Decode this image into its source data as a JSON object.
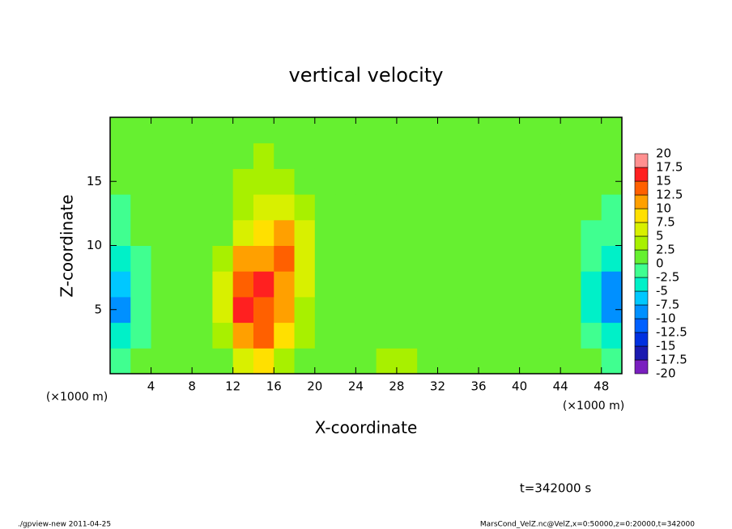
{
  "chart_data": {
    "type": "heatmap",
    "title": "vertical velocity",
    "xlabel": "X-coordinate",
    "ylabel": "Z-coordinate",
    "x_unit_label": "(×1000 m)",
    "time_label": "t=342000 s",
    "footer_left": "./gpview-new  2011-04-25",
    "footer_right": "MarsCond_VelZ.nc@VelZ,x=0:50000,z=0:20000,t=342000",
    "xlim": [
      0,
      50
    ],
    "ylim": [
      0,
      20
    ],
    "xticks": [
      4,
      8,
      12,
      16,
      20,
      24,
      28,
      32,
      36,
      40,
      44,
      48
    ],
    "yticks": [
      5,
      10,
      15
    ],
    "x": [
      1,
      3,
      5,
      7,
      9,
      11,
      13,
      15,
      17,
      19,
      21,
      23,
      25,
      27,
      29,
      31,
      33,
      35,
      37,
      39,
      41,
      43,
      45,
      47,
      49
    ],
    "y": [
      1,
      3,
      5,
      7,
      9,
      11,
      13,
      15,
      17,
      19
    ],
    "z": [
      [
        -2,
        0,
        1,
        1,
        1,
        2,
        6,
        8,
        4,
        1,
        1,
        1,
        1,
        4,
        3,
        1,
        1,
        2,
        1,
        1,
        2,
        1,
        1,
        0,
        -2
      ],
      [
        -5,
        -1,
        1,
        1,
        1,
        4,
        12,
        13,
        9,
        3,
        1,
        1,
        1,
        2,
        1,
        1,
        1,
        1,
        2,
        1,
        1,
        1,
        0,
        -1,
        -4
      ],
      [
        -8,
        -2,
        0,
        1,
        1,
        7,
        15,
        13,
        11,
        4,
        1,
        1,
        1,
        1,
        1,
        1,
        1,
        1,
        2,
        2,
        1,
        1,
        0,
        -3,
        -8
      ],
      [
        -6,
        -2,
        0,
        1,
        1,
        5,
        13,
        15,
        12,
        5,
        1,
        1,
        1,
        1,
        0,
        1,
        1,
        1,
        1,
        1,
        1,
        1,
        0,
        -3,
        -9
      ],
      [
        -4,
        -1,
        0,
        1,
        1,
        3,
        10,
        12,
        14,
        7,
        2,
        1,
        1,
        1,
        0,
        0,
        1,
        1,
        1,
        1,
        1,
        0,
        0,
        -2,
        -5
      ],
      [
        -2,
        0,
        1,
        1,
        1,
        2,
        5,
        8,
        11,
        6,
        2,
        1,
        1,
        1,
        1,
        1,
        1,
        1,
        1,
        1,
        1,
        0,
        0,
        -1,
        -2
      ],
      [
        -1,
        0,
        1,
        1,
        1,
        2,
        3,
        5,
        6,
        3,
        2,
        1,
        1,
        1,
        1,
        1,
        1,
        1,
        1,
        1,
        1,
        1,
        0,
        0,
        -1
      ],
      [
        0,
        1,
        1,
        2,
        2,
        2,
        3,
        3,
        3,
        2,
        2,
        2,
        1,
        1,
        1,
        1,
        1,
        1,
        1,
        1,
        1,
        1,
        1,
        0,
        0
      ],
      [
        0,
        1,
        1,
        2,
        2,
        2,
        2,
        3,
        2,
        2,
        2,
        1,
        1,
        1,
        1,
        1,
        1,
        1,
        1,
        1,
        1,
        1,
        1,
        0,
        0
      ],
      [
        0,
        1,
        1,
        1,
        1,
        2,
        2,
        2,
        2,
        2,
        1,
        1,
        1,
        1,
        1,
        1,
        1,
        1,
        1,
        1,
        1,
        1,
        1,
        0,
        0
      ]
    ],
    "colorbar": {
      "levels": [
        -20,
        -17.5,
        -15,
        -12.5,
        -10,
        -7.5,
        -5,
        -2.5,
        0,
        2.5,
        5,
        7.5,
        10,
        12.5,
        15,
        17.5,
        20
      ],
      "colors": [
        "#7a1fbf",
        "#1a1ab0",
        "#0030e0",
        "#0060ff",
        "#0090ff",
        "#00c8ff",
        "#00f0c8",
        "#40ff90",
        "#66f030",
        "#a8f000",
        "#d8f000",
        "#ffe000",
        "#ffa000",
        "#ff6000",
        "#ff2020",
        "#ff9090"
      ]
    }
  }
}
